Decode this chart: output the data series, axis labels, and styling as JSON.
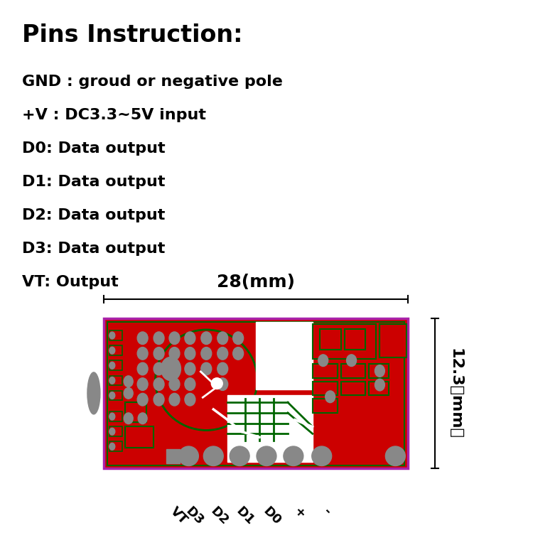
{
  "title": "Pins Instruction:",
  "pin_lines": [
    "GND : groud or negative pole",
    "+V : DC3.3~5V input",
    "D0: Data output",
    "D1: Data output",
    "D2: Data output",
    "D3: Data output",
    "VT: Output"
  ],
  "board_width_label": "28(mm)",
  "board_height_label": "12.3（mm）",
  "pin_labels": [
    "VT",
    "D3",
    "D2",
    "D1",
    "D0",
    "+",
    "-"
  ],
  "bg_color": "#ffffff",
  "text_color": "#000000",
  "board_red": "#cc0000",
  "board_border": "#aa22aa",
  "trace_green": "#006600",
  "pad_gray": "#888888",
  "white": "#ffffff",
  "title_fontsize": 24,
  "pin_fontsize": 16,
  "dim_fontsize": 16
}
